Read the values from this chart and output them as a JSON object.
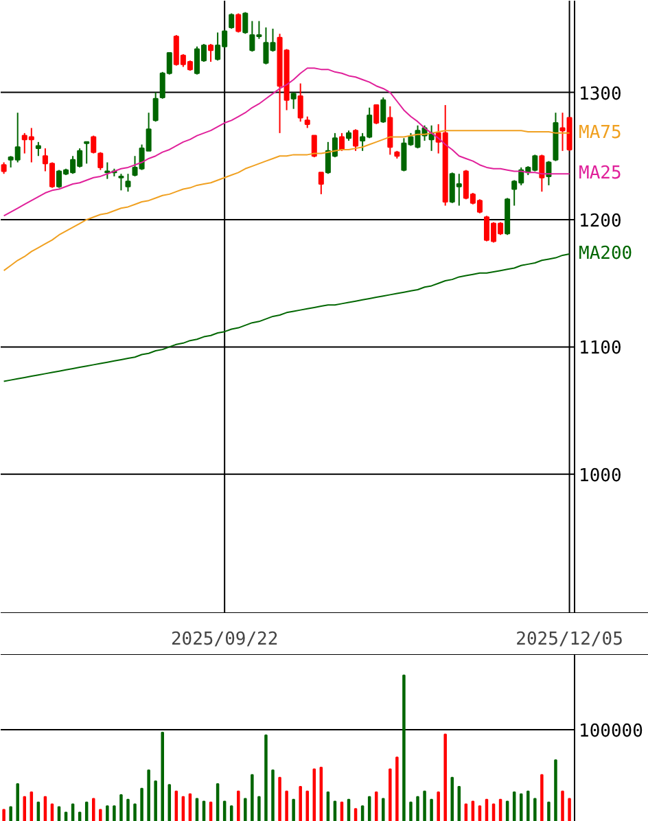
{
  "chart_data": [
    {
      "type": "candlestick",
      "categories": [
        null,
        null,
        null,
        null,
        null,
        null,
        null,
        null,
        null,
        null,
        null,
        null,
        null,
        null,
        null,
        null,
        null,
        null,
        null,
        null,
        null,
        null,
        null,
        null,
        null,
        null,
        null,
        null,
        null,
        null,
        null,
        null,
        "2025/09/22",
        null,
        null,
        null,
        null,
        null,
        null,
        null,
        null,
        null,
        null,
        null,
        null,
        null,
        null,
        null,
        null,
        null,
        null,
        null,
        null,
        null,
        null,
        null,
        null,
        null,
        null,
        null,
        null,
        null,
        null,
        null,
        null,
        null,
        null,
        null,
        null,
        null,
        null,
        null,
        null,
        null,
        null,
        null,
        null,
        null,
        null,
        null,
        null,
        null,
        "2025/12/05"
      ],
      "ohlc": [
        [
          1243,
          1245,
          1236,
          1238
        ],
        [
          1247,
          1250,
          1241,
          1249
        ],
        [
          1247,
          1284,
          1245,
          1257
        ],
        [
          1266,
          1268,
          1252,
          1263
        ],
        [
          1265,
          1272,
          1245,
          1263
        ],
        [
          1256,
          1261,
          1250,
          1258
        ],
        [
          1250,
          1256,
          1238,
          1244
        ],
        [
          1244,
          1245,
          1225,
          1226
        ],
        [
          1226,
          1239,
          1225,
          1238
        ],
        [
          1236,
          1240,
          1235,
          1239
        ],
        [
          1237,
          1250,
          1236,
          1247
        ],
        [
          1242,
          1256,
          1241,
          1254
        ],
        [
          1260,
          1261,
          1244,
          1261
        ],
        [
          1265,
          1266,
          1252,
          1253
        ],
        [
          1252,
          1253,
          1239,
          1241
        ],
        [
          1237,
          1245,
          1232,
          1238
        ],
        [
          1237,
          1240,
          1234,
          1238
        ],
        [
          1233,
          1236,
          1223,
          1234
        ],
        [
          1226,
          1236,
          1222,
          1230
        ],
        [
          1235,
          1250,
          1234,
          1241
        ],
        [
          1240,
          1259,
          1239,
          1256
        ],
        [
          1254,
          1284,
          1254,
          1271
        ],
        [
          1278,
          1300,
          1277,
          1295
        ],
        [
          1296,
          1316,
          1295,
          1315
        ],
        [
          1315,
          1331,
          1314,
          1331
        ],
        [
          1344,
          1345,
          1321,
          1322
        ],
        [
          1329,
          1330,
          1320,
          1322
        ],
        [
          1324,
          1325,
          1317,
          1318
        ],
        [
          1315,
          1336,
          1314,
          1334
        ],
        [
          1325,
          1338,
          1324,
          1337
        ],
        [
          1337,
          1338,
          1324,
          1333
        ],
        [
          1326,
          1347,
          1325,
          1337
        ],
        [
          1336,
          1349,
          1335,
          1348
        ],
        [
          1351,
          1362,
          1350,
          1361
        ],
        [
          1361,
          1362,
          1347,
          1348
        ],
        [
          1347,
          1363,
          1346,
          1362
        ],
        [
          1333,
          1356,
          1332,
          1345
        ],
        [
          1344,
          1356,
          1342,
          1345
        ],
        [
          1323,
          1351,
          1322,
          1339
        ],
        [
          1333,
          1350,
          1332,
          1339
        ],
        [
          1343,
          1346,
          1268,
          1305
        ],
        [
          1333,
          1334,
          1286,
          1294
        ],
        [
          1295,
          1300,
          1287,
          1299
        ],
        [
          1297,
          1307,
          1277,
          1280
        ],
        [
          1278,
          1281,
          1272,
          1275
        ],
        [
          1266,
          1266,
          1249,
          1250
        ],
        [
          1237,
          1237,
          1220,
          1228
        ],
        [
          1237,
          1261,
          1236,
          1254
        ],
        [
          1250,
          1268,
          1249,
          1264
        ],
        [
          1265,
          1268,
          1254,
          1255
        ],
        [
          1264,
          1270,
          1262,
          1268
        ],
        [
          1270,
          1271,
          1254,
          1258
        ],
        [
          1262,
          1268,
          1254,
          1265
        ],
        [
          1265,
          1288,
          1264,
          1282
        ],
        [
          1290,
          1290,
          1275,
          1276
        ],
        [
          1277,
          1296,
          1276,
          1294
        ],
        [
          1280,
          1289,
          1251,
          1257
        ],
        [
          1253,
          1254,
          1248,
          1250
        ],
        [
          1239,
          1264,
          1238,
          1260
        ],
        [
          1259,
          1268,
          1258,
          1265
        ],
        [
          1257,
          1274,
          1256,
          1270
        ],
        [
          1266,
          1274,
          1262,
          1272
        ],
        [
          1263,
          1274,
          1254,
          1268
        ],
        [
          1268,
          1275,
          1252,
          1261
        ],
        [
          1268,
          1290,
          1211,
          1214
        ],
        [
          1214,
          1237,
          1213,
          1236
        ],
        [
          1226,
          1236,
          1211,
          1228
        ],
        [
          1238,
          1239,
          1216,
          1217
        ],
        [
          1220,
          1221,
          1212,
          1213
        ],
        [
          1215,
          1216,
          1205,
          1206
        ],
        [
          1202,
          1203,
          1183,
          1184
        ],
        [
          1197,
          1198,
          1182,
          1183
        ],
        [
          1197,
          1198,
          1188,
          1189
        ],
        [
          1189,
          1217,
          1188,
          1216
        ],
        [
          1224,
          1231,
          1211,
          1230
        ],
        [
          1229,
          1241,
          1227,
          1239
        ],
        [
          1237,
          1242,
          1235,
          1241
        ],
        [
          1239,
          1251,
          1238,
          1250
        ],
        [
          1250,
          1251,
          1222,
          1233
        ],
        [
          1234,
          1246,
          1227,
          1245
        ],
        [
          1247,
          1284,
          1246,
          1276
        ],
        [
          1272,
          1284,
          1254,
          1270
        ],
        [
          1280,
          1280,
          1254,
          1255
        ]
      ],
      "colors": [
        "#ff0000",
        "#006600",
        "#006600",
        "#ff0000",
        "#ff0000",
        "#006600",
        "#ff0000",
        "#ff0000",
        "#006600",
        "#006600",
        "#006600",
        "#006600",
        "#006600",
        "#ff0000",
        "#ff0000",
        "#006600",
        "#006600",
        "#006600",
        "#006600",
        "#006600",
        "#006600",
        "#006600",
        "#006600",
        "#006600",
        "#006600",
        "#ff0000",
        "#ff0000",
        "#ff0000",
        "#006600",
        "#006600",
        "#ff0000",
        "#006600",
        "#006600",
        "#006600",
        "#ff0000",
        "#006600",
        "#006600",
        "#006600",
        "#006600",
        "#006600",
        "#ff0000",
        "#ff0000",
        "#006600",
        "#ff0000",
        "#ff0000",
        "#ff0000",
        "#ff0000",
        "#006600",
        "#006600",
        "#ff0000",
        "#006600",
        "#ff0000",
        "#006600",
        "#006600",
        "#ff0000",
        "#006600",
        "#ff0000",
        "#ff0000",
        "#006600",
        "#006600",
        "#006600",
        "#006600",
        "#006600",
        "#ff0000",
        "#ff0000",
        "#006600",
        "#006600",
        "#ff0000",
        "#ff0000",
        "#ff0000",
        "#ff0000",
        "#ff0000",
        "#ff0000",
        "#006600",
        "#006600",
        "#006600",
        "#006600",
        "#006600",
        "#ff0000",
        "#006600",
        "#006600",
        "#ff0000",
        "#ff0000"
      ],
      "series": [
        {
          "name": "MA75",
          "type": "line",
          "color": "#f0a020",
          "values": [
            1160,
            1164,
            1168,
            1171,
            1175,
            1178,
            1181,
            1184,
            1188,
            1191,
            1194,
            1197,
            1200,
            1202,
            1204,
            1205,
            1207,
            1209,
            1210,
            1212,
            1214,
            1215,
            1217,
            1219,
            1220,
            1222,
            1224,
            1225,
            1227,
            1228,
            1229,
            1231,
            1233,
            1235,
            1237,
            1240,
            1242,
            1244,
            1246,
            1248,
            1250,
            1250,
            1251,
            1251,
            1251,
            1252,
            1252,
            1253,
            1254,
            1255,
            1255,
            1256,
            1257,
            1259,
            1261,
            1263,
            1265,
            1265,
            1265,
            1266,
            1267,
            1267,
            1268,
            1269,
            1270,
            1270,
            1270,
            1270,
            1270,
            1270,
            1270,
            1270,
            1270,
            1270,
            1270,
            1270,
            1269,
            1269,
            1269,
            1269,
            1268,
            1268,
            1268
          ]
        },
        {
          "name": "MA25",
          "type": "line",
          "color": "#e0209a",
          "values": [
            1203,
            1206,
            1209,
            1212,
            1215,
            1218,
            1221,
            1223,
            1224,
            1226,
            1228,
            1229,
            1231,
            1233,
            1234,
            1236,
            1238,
            1240,
            1241,
            1243,
            1245,
            1248,
            1250,
            1253,
            1255,
            1258,
            1261,
            1263,
            1266,
            1268,
            1270,
            1273,
            1276,
            1278,
            1281,
            1284,
            1288,
            1291,
            1295,
            1299,
            1303,
            1306,
            1310,
            1315,
            1319,
            1319,
            1318,
            1318,
            1316,
            1315,
            1313,
            1312,
            1310,
            1308,
            1305,
            1303,
            1300,
            1293,
            1286,
            1281,
            1277,
            1272,
            1268,
            1264,
            1259,
            1255,
            1250,
            1248,
            1246,
            1243,
            1241,
            1240,
            1240,
            1239,
            1238,
            1238,
            1237,
            1237,
            1236,
            1236,
            1236,
            1236,
            1236
          ]
        },
        {
          "name": "MA200",
          "type": "line",
          "color": "#006600",
          "values": [
            1073,
            1074,
            1075,
            1076,
            1077,
            1078,
            1079,
            1080,
            1081,
            1082,
            1083,
            1084,
            1085,
            1086,
            1087,
            1088,
            1089,
            1090,
            1091,
            1092,
            1094,
            1095,
            1097,
            1098,
            1100,
            1102,
            1103,
            1105,
            1106,
            1108,
            1109,
            1111,
            1112,
            1114,
            1115,
            1117,
            1119,
            1120,
            1122,
            1124,
            1125,
            1127,
            1128,
            1129,
            1130,
            1131,
            1132,
            1133,
            1133,
            1134,
            1135,
            1136,
            1137,
            1138,
            1139,
            1140,
            1141,
            1142,
            1143,
            1144,
            1145,
            1147,
            1148,
            1150,
            1152,
            1153,
            1155,
            1156,
            1157,
            1158,
            1158,
            1159,
            1160,
            1161,
            1162,
            1164,
            1165,
            1166,
            1168,
            1169,
            1170,
            1172,
            1173
          ]
        }
      ],
      "ylim": [
        891,
        1372
      ],
      "yticks": [
        1000,
        1100,
        1200,
        1300
      ],
      "grid": true
    },
    {
      "type": "bar",
      "categories": [
        null,
        null,
        null,
        null,
        null,
        null,
        null,
        null,
        null,
        null,
        null,
        null,
        null,
        null,
        null,
        null,
        null,
        null,
        null,
        null,
        null,
        null,
        null,
        null,
        null,
        null,
        null,
        null,
        null,
        null,
        null,
        null,
        "2025/09/22",
        null,
        null,
        null,
        null,
        null,
        null,
        null,
        null,
        null,
        null,
        null,
        null,
        null,
        null,
        null,
        null,
        null,
        null,
        null,
        null,
        null,
        null,
        null,
        null,
        null,
        null,
        null,
        null,
        null,
        null,
        null,
        null,
        null,
        null,
        null,
        null,
        null,
        null,
        null,
        null,
        null,
        null,
        null,
        null,
        null,
        null,
        null,
        null,
        null,
        "2025/12/05"
      ],
      "values": [
        13000,
        16000,
        41000,
        27000,
        32000,
        21000,
        27000,
        19000,
        16000,
        10000,
        19000,
        10000,
        21000,
        25000,
        13000,
        17000,
        17000,
        29000,
        24000,
        19000,
        36000,
        56000,
        44000,
        97000,
        40000,
        33000,
        27000,
        30000,
        25000,
        22000,
        21000,
        41000,
        22000,
        17000,
        33000,
        25000,
        51000,
        27000,
        94000,
        56000,
        48000,
        33000,
        24000,
        38000,
        33000,
        57000,
        59000,
        32000,
        22000,
        21000,
        24000,
        14000,
        17000,
        27000,
        32000,
        25000,
        57000,
        70000,
        159000,
        21000,
        27000,
        33000,
        24000,
        32000,
        95000,
        48000,
        38000,
        19000,
        22000,
        17000,
        24000,
        19000,
        24000,
        22000,
        32000,
        30000,
        33000,
        25000,
        51000,
        21000,
        67000,
        33000,
        25000
      ],
      "colors": [
        "#ff0000",
        "#006600",
        "#006600",
        "#ff0000",
        "#ff0000",
        "#006600",
        "#ff0000",
        "#ff0000",
        "#006600",
        "#006600",
        "#006600",
        "#006600",
        "#006600",
        "#ff0000",
        "#ff0000",
        "#006600",
        "#006600",
        "#006600",
        "#006600",
        "#006600",
        "#006600",
        "#006600",
        "#006600",
        "#006600",
        "#006600",
        "#ff0000",
        "#ff0000",
        "#ff0000",
        "#006600",
        "#006600",
        "#ff0000",
        "#006600",
        "#006600",
        "#006600",
        "#ff0000",
        "#006600",
        "#006600",
        "#006600",
        "#006600",
        "#006600",
        "#ff0000",
        "#ff0000",
        "#006600",
        "#ff0000",
        "#ff0000",
        "#ff0000",
        "#ff0000",
        "#006600",
        "#006600",
        "#ff0000",
        "#006600",
        "#ff0000",
        "#006600",
        "#006600",
        "#ff0000",
        "#006600",
        "#ff0000",
        "#ff0000",
        "#006600",
        "#006600",
        "#006600",
        "#006600",
        "#006600",
        "#ff0000",
        "#ff0000",
        "#006600",
        "#006600",
        "#ff0000",
        "#ff0000",
        "#ff0000",
        "#ff0000",
        "#ff0000",
        "#ff0000",
        "#006600",
        "#006600",
        "#006600",
        "#006600",
        "#006600",
        "#ff0000",
        "#006600",
        "#006600",
        "#ff0000",
        "#ff0000"
      ],
      "ylim": [
        0,
        182000
      ],
      "yticks": [
        100000
      ],
      "grid": "y",
      "tick_labels": "y"
    }
  ]
}
